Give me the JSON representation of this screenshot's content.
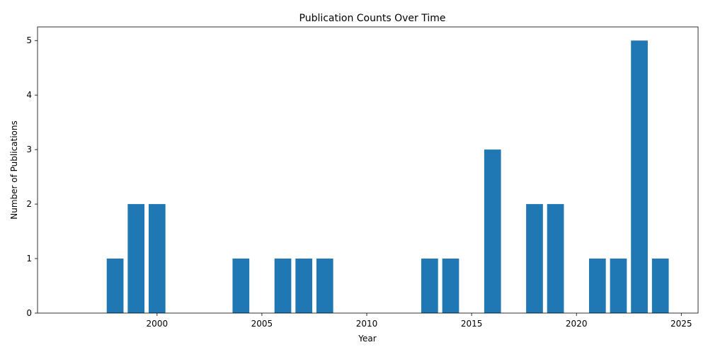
{
  "chart_data": {
    "type": "bar",
    "title": "Publication Counts Over Time",
    "xlabel": "Year",
    "ylabel": "Number of Publications",
    "x": [
      1998,
      1999,
      2000,
      2004,
      2006,
      2007,
      2008,
      2013,
      2014,
      2016,
      2018,
      2019,
      2021,
      2022,
      2023,
      2024
    ],
    "values": [
      1,
      2,
      2,
      1,
      1,
      1,
      1,
      1,
      1,
      3,
      2,
      2,
      1,
      1,
      5,
      1
    ],
    "xlim": [
      1994.3,
      2025.8
    ],
    "ylim": [
      0,
      5.25
    ],
    "xticks": [
      2000,
      2005,
      2010,
      2015,
      2020,
      2025
    ],
    "yticks": [
      0,
      1,
      2,
      3,
      4,
      5
    ],
    "bar_color": "#1f77b4",
    "grid": false,
    "legend": "none"
  }
}
